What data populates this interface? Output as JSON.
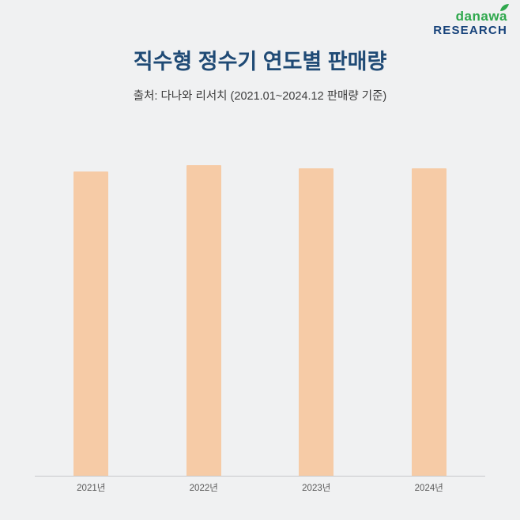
{
  "page": {
    "background_color": "#f0f1f2"
  },
  "logo": {
    "brand": "danawa",
    "sub": "RESEARCH",
    "brand_color": "#2fa84d",
    "sub_color": "#16427a"
  },
  "header": {
    "title": "직수형 정수기 연도별 판매량",
    "subtitle": "출처: 다나와 리서치 (2021.01~2024.12 판매량 기준)",
    "title_color": "#1f4a75"
  },
  "chart_data": {
    "type": "bar",
    "title": "직수형 정수기 연도별 판매량",
    "subtitle": "출처: 다나와 리서치 (2021.01~2024.12 판매량 기준)",
    "categories": [
      "2021년",
      "2022년",
      "2023년",
      "2024년"
    ],
    "values": [
      98,
      100,
      99,
      99
    ],
    "xlabel": "",
    "ylabel": "",
    "ylim": [
      0,
      110
    ],
    "grid": false,
    "legend": false,
    "value_labels": false,
    "bar_color": "#f6cba6",
    "axis_color": "#c7c9cb",
    "note": "relative units; no y-axis scale shown in source image"
  }
}
